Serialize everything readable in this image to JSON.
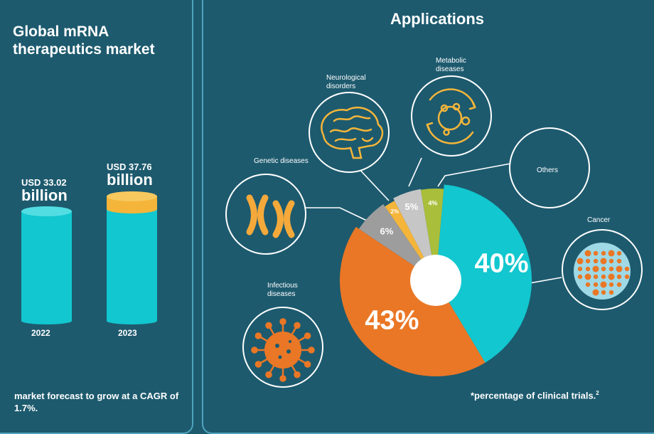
{
  "market": {
    "title": "Global mRNA therapeutics market",
    "bars": [
      {
        "prefix": "USD 33.02",
        "unit": "billion",
        "year": "2022",
        "value": 33.02
      },
      {
        "prefix": "USD 37.76",
        "unit": "billion",
        "year": "2023",
        "value": 37.76
      }
    ],
    "forecast": "market forecast to grow at a CAGR of 1.7%."
  },
  "applications": {
    "title": "Applications",
    "footnote": "*percentage of clinical trials.",
    "footnote_ref": "2"
  },
  "chart_data": {
    "type": "pie",
    "title": "Applications",
    "slices": [
      {
        "label": "Cancer",
        "value": 40,
        "display": "40%",
        "color": "#12c7cf"
      },
      {
        "label": "Infectious diseases",
        "value": 43,
        "display": "43%",
        "color": "#ea7725"
      },
      {
        "label": "Genetic diseases",
        "value": 6,
        "display": "6%",
        "color": "#9d9d9d"
      },
      {
        "label": "Neurological disorders",
        "value": 2,
        "display": "2%",
        "color": "#f4b53a"
      },
      {
        "label": "Metabolic diseases",
        "value": 5,
        "display": "5%",
        "color": "#c6c6c6"
      },
      {
        "label": "Others",
        "value": 4,
        "display": "4%",
        "color": "#a9be3a"
      }
    ]
  },
  "colors": {
    "background": "#1d5a6e",
    "cylinder": "#12c7cf",
    "growth_cap": "#f4b53a",
    "border": "#4fa3bd"
  }
}
